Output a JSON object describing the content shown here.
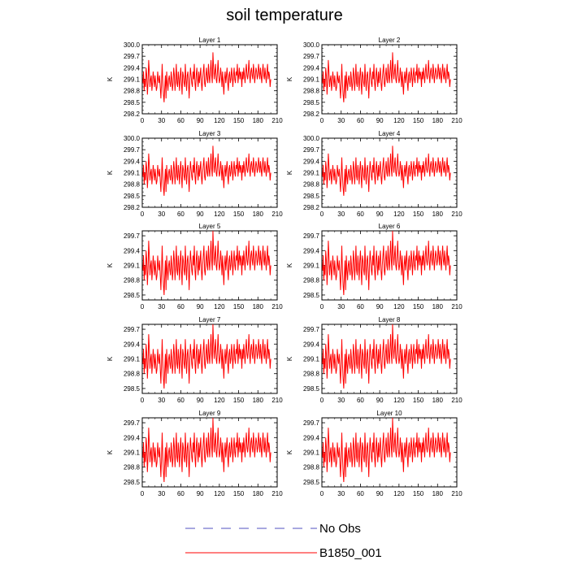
{
  "chart_data": {
    "type": "line",
    "title": "soil temperature",
    "x_ticks": [
      0,
      30,
      60,
      90,
      120,
      150,
      180,
      210
    ],
    "xlim": [
      0,
      210
    ],
    "legend": [
      {
        "name": "No Obs",
        "color": "#5050c0",
        "style": "dashed"
      },
      {
        "name": "B1850_001",
        "color": "#ff0000",
        "style": "solid"
      }
    ],
    "panels": [
      {
        "title": "Layer 1",
        "ylabel": "K",
        "ylim": [
          298.2,
          300.0
        ],
        "y_ticks": [
          "298.2",
          "298.5",
          "298.8",
          "299.1",
          "299.4",
          "299.7",
          "300.0"
        ]
      },
      {
        "title": "Layer 2",
        "ylabel": "K",
        "ylim": [
          298.2,
          300.0
        ],
        "y_ticks": [
          "298.2",
          "298.5",
          "298.8",
          "299.1",
          "299.4",
          "299.7",
          "300.0"
        ]
      },
      {
        "title": "Layer 3",
        "ylabel": "K",
        "ylim": [
          298.2,
          300.0
        ],
        "y_ticks": [
          "298.2",
          "298.5",
          "298.8",
          "299.1",
          "299.4",
          "299.7",
          "300.0"
        ]
      },
      {
        "title": "Layer 4",
        "ylabel": "K",
        "ylim": [
          298.2,
          300.0
        ],
        "y_ticks": [
          "298.2",
          "298.5",
          "298.8",
          "299.1",
          "299.4",
          "299.7",
          "300.0"
        ]
      },
      {
        "title": "Layer 5",
        "ylabel": "K",
        "ylim": [
          298.4,
          299.8
        ],
        "y_ticks": [
          "298.5",
          "298.8",
          "299.1",
          "299.4",
          "299.7"
        ]
      },
      {
        "title": "Layer 6",
        "ylabel": "K",
        "ylim": [
          298.4,
          299.8
        ],
        "y_ticks": [
          "298.5",
          "298.8",
          "299.1",
          "299.4",
          "299.7"
        ]
      },
      {
        "title": "Layer 7",
        "ylabel": "K",
        "ylim": [
          298.4,
          299.8
        ],
        "y_ticks": [
          "298.5",
          "298.8",
          "299.1",
          "299.4",
          "299.7"
        ]
      },
      {
        "title": "Layer 8",
        "ylabel": "K",
        "ylim": [
          298.4,
          299.8
        ],
        "y_ticks": [
          "298.5",
          "298.8",
          "299.1",
          "299.4",
          "299.7"
        ]
      },
      {
        "title": "Layer 9",
        "ylabel": "K",
        "ylim": [
          298.4,
          299.8
        ],
        "y_ticks": [
          "298.5",
          "298.8",
          "299.1",
          "299.4",
          "299.7"
        ]
      },
      {
        "title": "Layer 10",
        "ylabel": "K",
        "ylim": [
          298.4,
          299.8
        ],
        "y_ticks": [
          "298.5",
          "298.8",
          "299.1",
          "299.4",
          "299.7"
        ]
      }
    ],
    "series": [
      {
        "name": "B1850_001",
        "color": "#ff0000",
        "x": [
          1,
          2,
          3,
          4,
          5,
          6,
          7,
          8,
          9,
          10,
          11,
          12,
          13,
          14,
          15,
          16,
          17,
          18,
          19,
          20,
          21,
          22,
          23,
          24,
          25,
          26,
          27,
          28,
          29,
          30,
          31,
          32,
          33,
          34,
          35,
          36,
          37,
          38,
          39,
          40,
          41,
          42,
          43,
          44,
          45,
          46,
          47,
          48,
          49,
          50,
          51,
          52,
          53,
          54,
          55,
          56,
          57,
          58,
          59,
          60,
          61,
          62,
          63,
          64,
          65,
          66,
          67,
          68,
          69,
          70,
          71,
          72,
          73,
          74,
          75,
          76,
          77,
          78,
          79,
          80,
          81,
          82,
          83,
          84,
          85,
          86,
          87,
          88,
          89,
          90,
          91,
          92,
          93,
          94,
          95,
          96,
          97,
          98,
          99,
          100,
          101,
          102,
          103,
          104,
          105,
          106,
          107,
          108,
          109,
          110,
          111,
          112,
          113,
          114,
          115,
          116,
          117,
          118,
          119,
          120,
          121,
          122,
          123,
          124,
          125,
          126,
          127,
          128,
          129,
          130,
          131,
          132,
          133,
          134,
          135,
          136,
          137,
          138,
          139,
          140,
          141,
          142,
          143,
          144,
          145,
          146,
          147,
          148,
          149,
          150,
          151,
          152,
          153,
          154,
          155,
          156,
          157,
          158,
          159,
          160,
          161,
          162,
          163,
          164,
          165,
          166,
          167,
          168,
          169,
          170,
          171,
          172,
          173,
          174,
          175,
          176,
          177,
          178,
          179,
          180,
          181,
          182,
          183,
          184,
          185,
          186,
          187,
          188,
          189,
          190,
          191,
          192,
          193,
          194,
          195,
          196,
          197,
          198,
          199,
          200
        ],
        "values": [
          299.0,
          299.3,
          298.8,
          299.1,
          298.9,
          299.4,
          299.2,
          298.7,
          299.0,
          299.6,
          299.3,
          298.9,
          299.1,
          299.2,
          298.8,
          299.0,
          299.3,
          299.1,
          298.9,
          299.2,
          299.0,
          298.8,
          298.9,
          299.3,
          299.1,
          299.0,
          299.2,
          298.9,
          298.6,
          299.0,
          299.5,
          299.0,
          298.7,
          298.5,
          298.9,
          299.2,
          298.6,
          299.3,
          299.0,
          298.8,
          299.1,
          299.2,
          299.0,
          298.9,
          299.3,
          299.1,
          298.8,
          299.0,
          299.4,
          299.2,
          298.8,
          299.1,
          299.5,
          299.0,
          298.9,
          299.3,
          299.1,
          298.8,
          299.2,
          299.4,
          299.0,
          298.7,
          299.3,
          299.2,
          299.0,
          298.9,
          299.5,
          299.1,
          298.8,
          299.2,
          299.3,
          299.0,
          298.6,
          299.1,
          299.4,
          299.2,
          299.0,
          298.9,
          299.3,
          299.1,
          299.5,
          299.0,
          298.8,
          299.2,
          299.4,
          299.1,
          298.9,
          299.3,
          299.0,
          299.2,
          299.4,
          299.0,
          298.8,
          299.1,
          299.3,
          299.5,
          299.0,
          298.9,
          299.2,
          299.4,
          299.1,
          299.0,
          299.5,
          299.2,
          299.0,
          299.3,
          299.6,
          299.2,
          299.0,
          299.8,
          299.4,
          299.1,
          299.3,
          299.5,
          299.1,
          299.0,
          299.3,
          299.6,
          299.2,
          299.0,
          299.1,
          299.4,
          299.2,
          298.9,
          299.3,
          299.0,
          298.7,
          299.1,
          299.3,
          299.0,
          299.2,
          299.4,
          299.0,
          298.8,
          299.2,
          299.3,
          299.0,
          299.1,
          299.4,
          299.2,
          298.9,
          299.2,
          299.4,
          299.1,
          299.0,
          299.3,
          299.2,
          299.5,
          299.0,
          299.2,
          299.4,
          299.1,
          299.3,
          299.2,
          298.9,
          299.3,
          299.1,
          299.4,
          299.2,
          299.0,
          299.3,
          299.5,
          299.2,
          299.1,
          299.3,
          299.6,
          299.2,
          299.0,
          299.3,
          299.4,
          299.2,
          299.1,
          299.5,
          299.3,
          299.0,
          299.2,
          299.4,
          299.3,
          299.1,
          299.2,
          299.5,
          299.3,
          299.1,
          299.4,
          299.2,
          299.0,
          299.3,
          299.5,
          299.2,
          299.1,
          299.4,
          299.2,
          299.0,
          299.3,
          299.5,
          299.1,
          299.3,
          299.2,
          298.9,
          299.1
        ]
      }
    ]
  }
}
